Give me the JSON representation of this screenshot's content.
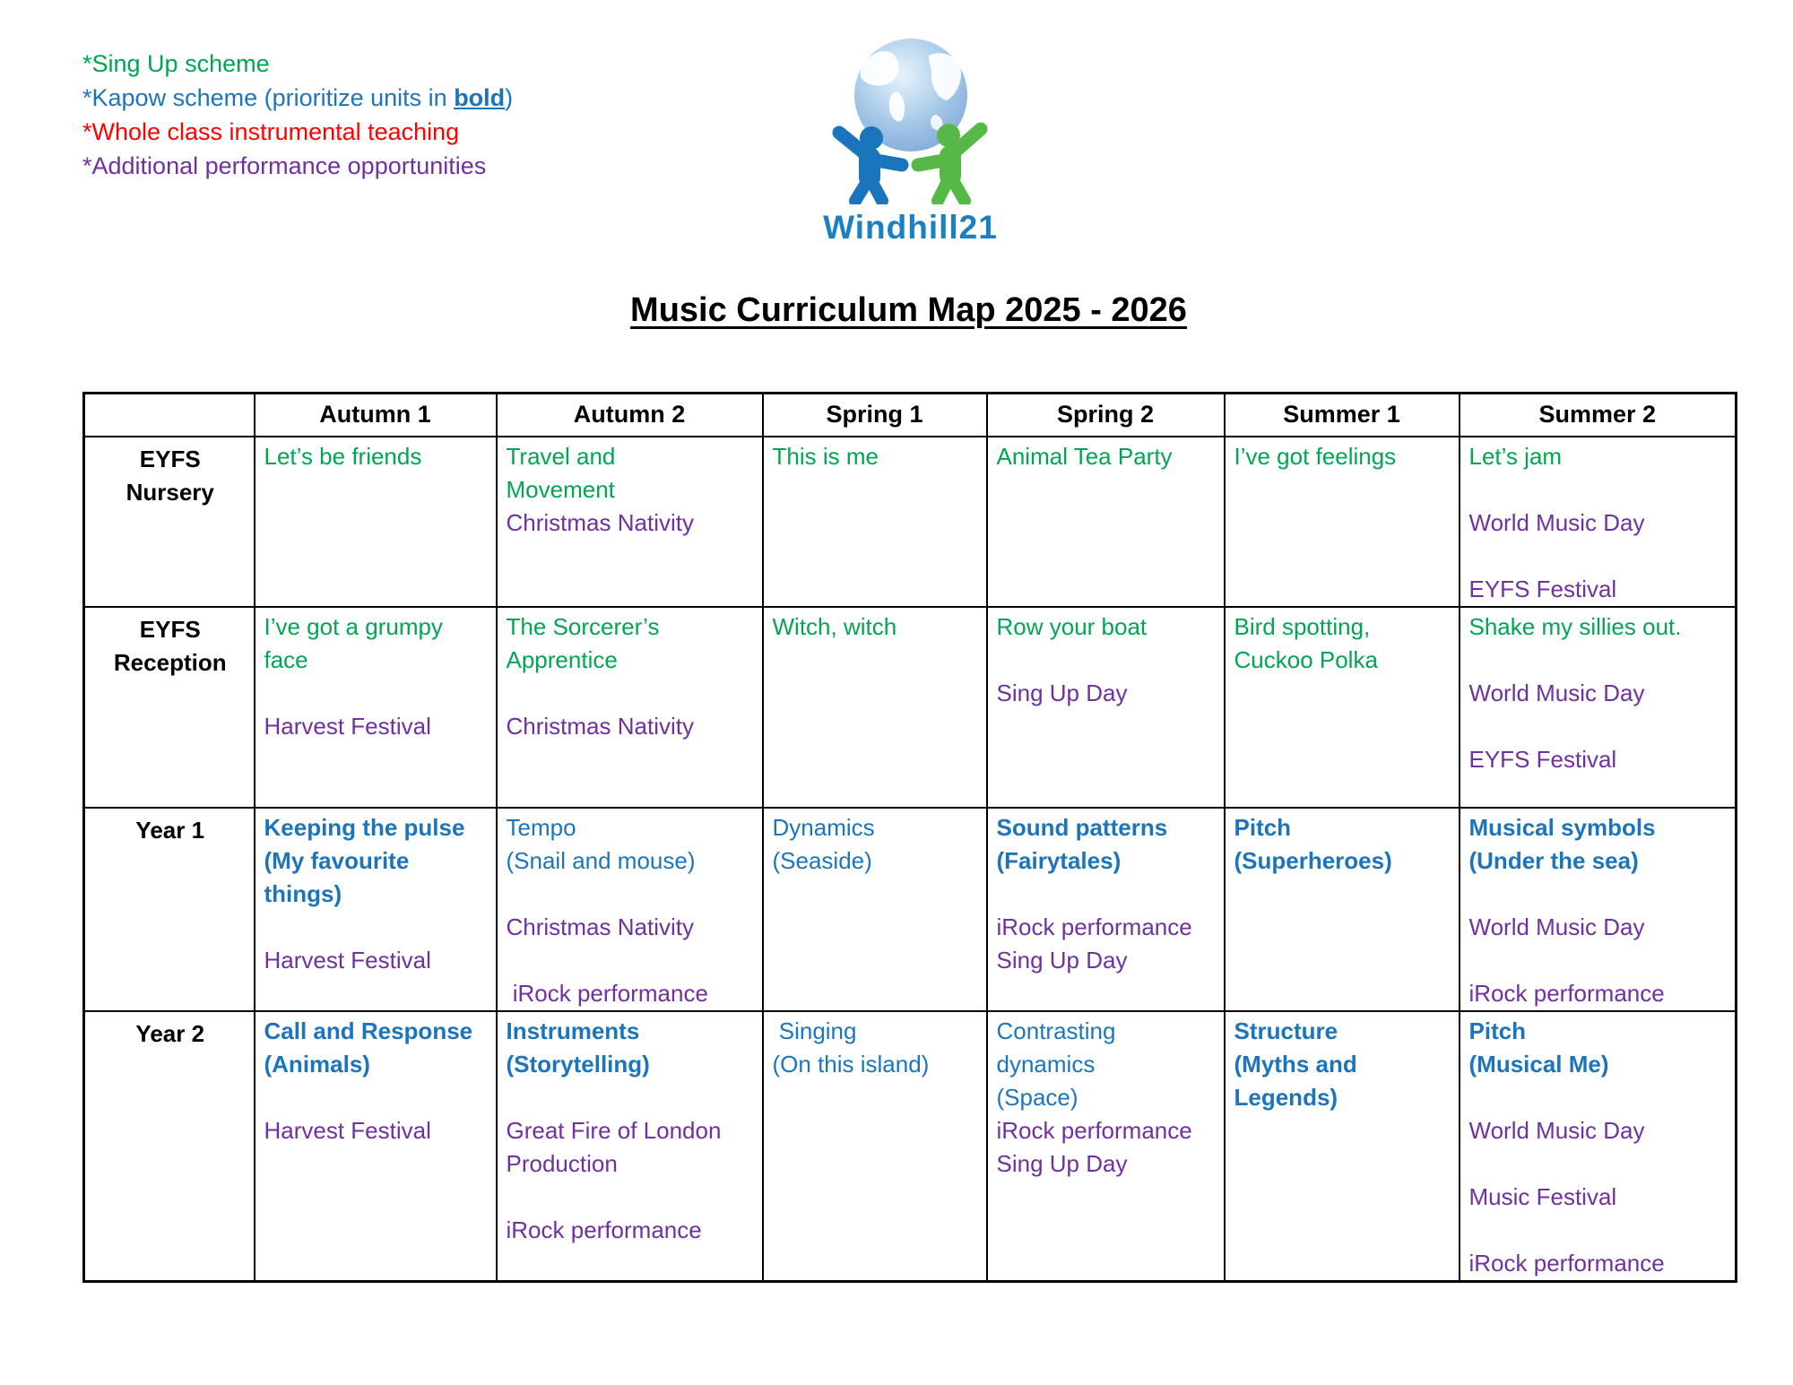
{
  "colors": {
    "green": "#00A651",
    "blue": "#1C75BC",
    "red": "#FF0000",
    "purple": "#7030A0",
    "logo_blue": "#1B75BC",
    "logo_green": "#56B947",
    "logo_text": "#1B7FC4",
    "globe": "#A9CBEA"
  },
  "legend": {
    "lines": [
      {
        "color": "green",
        "parts": [
          {
            "text": "*Sing Up scheme"
          }
        ]
      },
      {
        "color": "blue",
        "parts": [
          {
            "text": "*Kapow scheme (prioritize units in "
          },
          {
            "text": "bold",
            "bold": true,
            "underline": true
          },
          {
            "text": ")"
          }
        ]
      },
      {
        "color": "red",
        "parts": [
          {
            "text": "*Whole class instrumental teaching"
          }
        ]
      },
      {
        "color": "purple",
        "parts": [
          {
            "text": "*Additional performance opportunities"
          }
        ]
      }
    ]
  },
  "logo": {
    "text": "Windhill21"
  },
  "title": "Music Curriculum Map 2025 - 2026",
  "table": {
    "columns": [
      "",
      "Autumn 1",
      "Autumn 2",
      "Spring 1",
      "Spring 2",
      "Summer 1",
      "Summer 2"
    ],
    "rows": [
      {
        "label_lines": [
          "EYFS",
          "Nursery"
        ],
        "cells": [
          {
            "lines": [
              {
                "text": "Let’s be friends",
                "style": "green"
              }
            ]
          },
          {
            "lines": [
              {
                "text": "Travel and",
                "style": "green"
              },
              {
                "text": "Movement",
                "style": "green"
              },
              {
                "text": "Christmas Nativity",
                "style": "purple"
              }
            ]
          },
          {
            "lines": [
              {
                "text": "This is me",
                "style": "green"
              }
            ]
          },
          {
            "lines": [
              {
                "text": "Animal Tea Party",
                "style": "green"
              }
            ]
          },
          {
            "lines": [
              {
                "text": "I’ve got feelings",
                "style": "green"
              }
            ]
          },
          {
            "lines": [
              {
                "text": "Let’s jam",
                "style": "green"
              },
              {
                "text": "",
                "style": "blank"
              },
              {
                "text": "World Music Day",
                "style": "purple"
              },
              {
                "text": "",
                "style": "blank"
              },
              {
                "text": "EYFS Festival",
                "style": "purple"
              }
            ]
          }
        ]
      },
      {
        "label_lines": [
          "EYFS",
          "Reception"
        ],
        "cells": [
          {
            "lines": [
              {
                "text": "I’ve got a grumpy",
                "style": "green"
              },
              {
                "text": "face",
                "style": "green"
              },
              {
                "text": "",
                "style": "blank"
              },
              {
                "text": "Harvest Festival",
                "style": "purple"
              }
            ]
          },
          {
            "lines": [
              {
                "text": "The Sorcerer’s",
                "style": "green"
              },
              {
                "text": "Apprentice",
                "style": "green"
              },
              {
                "text": "",
                "style": "blank"
              },
              {
                "text": "Christmas Nativity",
                "style": "purple"
              }
            ]
          },
          {
            "lines": [
              {
                "text": "Witch, witch",
                "style": "green"
              }
            ]
          },
          {
            "lines": [
              {
                "text": "Row your boat",
                "style": "green"
              },
              {
                "text": "",
                "style": "blank"
              },
              {
                "text": "Sing Up Day",
                "style": "purple"
              }
            ]
          },
          {
            "lines": [
              {
                "text": "Bird spotting,",
                "style": "green"
              },
              {
                "text": "Cuckoo Polka",
                "style": "green"
              }
            ]
          },
          {
            "lines": [
              {
                "text": "Shake my sillies out.",
                "style": "green"
              },
              {
                "text": "",
                "style": "blank"
              },
              {
                "text": "World Music Day",
                "style": "purple"
              },
              {
                "text": "",
                "style": "blank"
              },
              {
                "text": "EYFS Festival",
                "style": "purple"
              }
            ]
          }
        ]
      },
      {
        "label_lines": [
          "Year 1"
        ],
        "cells": [
          {
            "lines": [
              {
                "text": "Keeping the pulse",
                "style": "blue-bold"
              },
              {
                "text": "(My favourite",
                "style": "blue-bold"
              },
              {
                "text": "things)",
                "style": "blue-bold"
              },
              {
                "text": "",
                "style": "blank"
              },
              {
                "text": "Harvest Festival",
                "style": "purple"
              }
            ]
          },
          {
            "lines": [
              {
                "text": "Tempo",
                "style": "blue"
              },
              {
                "text": "(Snail and mouse)",
                "style": "blue"
              },
              {
                "text": "",
                "style": "blank"
              },
              {
                "text": "Christmas Nativity",
                "style": "purple"
              },
              {
                "text": "",
                "style": "blank"
              },
              {
                "text": " iRock performance",
                "style": "purple"
              }
            ]
          },
          {
            "lines": [
              {
                "text": "Dynamics",
                "style": "blue"
              },
              {
                "text": "(Seaside)",
                "style": "blue"
              }
            ]
          },
          {
            "lines": [
              {
                "text": "Sound patterns",
                "style": "blue-bold"
              },
              {
                "text": "(Fairytales)",
                "style": "blue-bold"
              },
              {
                "text": "",
                "style": "blank"
              },
              {
                "text": "iRock performance",
                "style": "purple"
              },
              {
                "text": "Sing Up Day",
                "style": "purple"
              }
            ]
          },
          {
            "lines": [
              {
                "text": "Pitch",
                "style": "blue-bold"
              },
              {
                "text": "(Superheroes)",
                "style": "blue-bold"
              }
            ]
          },
          {
            "lines": [
              {
                "text": "Musical symbols",
                "style": "blue-bold"
              },
              {
                "text": "(Under the sea)",
                "style": "blue-bold"
              },
              {
                "text": "",
                "style": "blank"
              },
              {
                "text": "World Music Day",
                "style": "purple"
              },
              {
                "text": "",
                "style": "blank"
              },
              {
                "text": "iRock performance",
                "style": "purple"
              }
            ]
          }
        ]
      },
      {
        "label_lines": [
          "Year 2"
        ],
        "cells": [
          {
            "lines": [
              {
                "text": "Call and Response",
                "style": "blue-bold"
              },
              {
                "text": "(Animals)",
                "style": "blue-bold"
              },
              {
                "text": "",
                "style": "blank"
              },
              {
                "text": "Harvest Festival",
                "style": "purple"
              }
            ]
          },
          {
            "lines": [
              {
                "text": "Instruments",
                "style": "blue-bold"
              },
              {
                "text": "(Storytelling)",
                "style": "blue-bold"
              },
              {
                "text": "",
                "style": "blank"
              },
              {
                "text": "Great Fire of London",
                "style": "purple"
              },
              {
                "text": "Production",
                "style": "purple"
              },
              {
                "text": "",
                "style": "blank"
              },
              {
                "text": "iRock performance",
                "style": "purple"
              }
            ]
          },
          {
            "lines": [
              {
                "text": " Singing",
                "style": "blue"
              },
              {
                "text": "(On this island)",
                "style": "blue"
              }
            ]
          },
          {
            "lines": [
              {
                "text": "Contrasting",
                "style": "blue"
              },
              {
                "text": "dynamics",
                "style": "blue"
              },
              {
                "text": "(Space)",
                "style": "blue"
              },
              {
                "text": "iRock performance",
                "style": "purple"
              },
              {
                "text": "Sing Up Day",
                "style": "purple"
              }
            ]
          },
          {
            "lines": [
              {
                "text": "Structure",
                "style": "blue-bold"
              },
              {
                "text": "(Myths and",
                "style": "blue-bold"
              },
              {
                "text": "Legends)",
                "style": "blue-bold"
              }
            ]
          },
          {
            "lines": [
              {
                "text": "Pitch",
                "style": "blue-bold"
              },
              {
                "text": "(Musical Me)",
                "style": "blue-bold"
              },
              {
                "text": "",
                "style": "blank"
              },
              {
                "text": "World Music Day",
                "style": "purple"
              },
              {
                "text": "",
                "style": "blank"
              },
              {
                "text": "Music Festival",
                "style": "purple"
              },
              {
                "text": "",
                "style": "blank"
              },
              {
                "text": "iRock performance",
                "style": "purple"
              }
            ]
          }
        ]
      }
    ]
  }
}
